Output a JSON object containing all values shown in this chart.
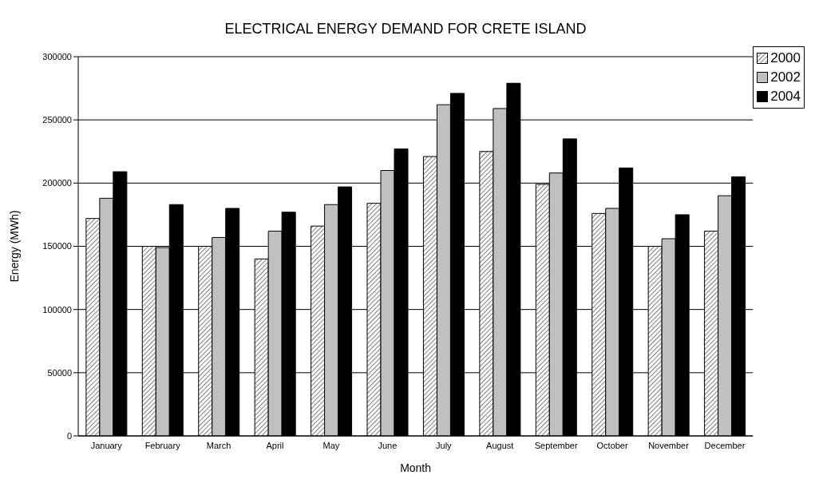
{
  "chart_data": {
    "type": "bar",
    "title": "ELECTRICAL ENERGY DEMAND FOR CRETE ISLAND",
    "xlabel": "Month",
    "ylabel": "Energy (MWh)",
    "categories": [
      "January",
      "February",
      "March",
      "April",
      "May",
      "June",
      "July",
      "August",
      "September",
      "October",
      "November",
      "December"
    ],
    "series": [
      {
        "name": "2000",
        "color": "#000000",
        "values": [
          172000,
          150000,
          150000,
          140000,
          166000,
          184000,
          221000,
          225000,
          199000,
          176000,
          150000,
          162000
        ]
      },
      {
        "name": "2002",
        "color": "#c0c0c0",
        "values": [
          188000,
          149000,
          157000,
          162000,
          183000,
          210000,
          262000,
          259000,
          208000,
          180000,
          156000,
          190000
        ]
      },
      {
        "name": "2004",
        "color": "#000000",
        "values": [
          209000,
          183000,
          180000,
          177000,
          197000,
          227000,
          271000,
          279000,
          235000,
          212000,
          175000,
          205000
        ]
      }
    ],
    "ylim": [
      0,
      300000
    ],
    "yticks": [
      0,
      50000,
      100000,
      150000,
      200000,
      250000,
      300000
    ],
    "grid": "y",
    "legend": "top right"
  }
}
